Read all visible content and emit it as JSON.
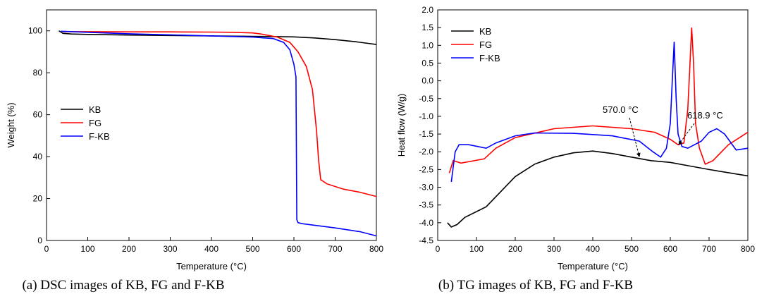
{
  "chart_data": [
    {
      "type": "line",
      "caption": "(a) DSC images of KB, FG and F-KB",
      "xlabel": "Temperature (°C)",
      "ylabel": "Weight (%)",
      "xlim": [
        0,
        800
      ],
      "xticks": [
        0,
        100,
        200,
        300,
        400,
        500,
        600,
        700,
        800
      ],
      "ylim": [
        0,
        110
      ],
      "yticks": [
        0,
        20,
        40,
        60,
        80,
        100
      ],
      "legend": "center-left",
      "series": [
        {
          "name": "KB",
          "color": "#000000",
          "x": [
            30,
            40,
            60,
            100,
            200,
            300,
            400,
            500,
            600,
            650,
            700,
            750,
            800
          ],
          "values": [
            100,
            98.8,
            98.5,
            98.3,
            98,
            97.8,
            97.6,
            97.4,
            97.1,
            96.6,
            95.8,
            94.8,
            93.5
          ]
        },
        {
          "name": "FG",
          "color": "#ff0000",
          "x": [
            40,
            100,
            200,
            300,
            400,
            450,
            500,
            520,
            560,
            590,
            610,
            630,
            645,
            655,
            660,
            665,
            680,
            720,
            760,
            800
          ],
          "values": [
            99.6,
            99.6,
            99.5,
            99.5,
            99.4,
            99.3,
            99,
            98.5,
            97,
            94.5,
            90,
            83,
            72,
            52,
            38,
            29,
            27,
            24.5,
            23,
            21
          ]
        },
        {
          "name": "F-KB",
          "color": "#0000ff",
          "x": [
            35,
            100,
            200,
            300,
            400,
            500,
            550,
            575,
            590,
            600,
            605,
            607,
            610,
            620,
            700,
            760,
            800
          ],
          "values": [
            99.8,
            99.3,
            98.6,
            98.1,
            97.6,
            97,
            96.3,
            94.5,
            91,
            84,
            78,
            10,
            8.5,
            8,
            6,
            4.2,
            2.2
          ]
        }
      ]
    },
    {
      "type": "line",
      "caption": "(b) TG images of KB, FG and F-KB",
      "xlabel": "Temperature (°C)",
      "ylabel": "Heat flow (W/g)",
      "xlim": [
        0,
        800
      ],
      "xticks": [
        0,
        100,
        200,
        300,
        400,
        500,
        600,
        700,
        800
      ],
      "ylim": [
        -4.5,
        2.0
      ],
      "yticks": [
        {
          "value": -4.5,
          "label": "-4.5"
        },
        {
          "value": -4,
          "label": "-4.0"
        },
        {
          "value": -3.5,
          "label": "-3.5"
        },
        {
          "value": -3,
          "label": "-3.0"
        },
        {
          "value": -2.5,
          "label": "-2.5"
        },
        {
          "value": -2,
          "label": "-2.0"
        },
        {
          "value": -1.5,
          "label": "-1.5"
        },
        {
          "value": -1,
          "label": "-1.0"
        },
        {
          "value": -0.5,
          "label": "-0.5"
        },
        {
          "value": 0,
          "label": "0.0"
        },
        0.5,
        {
          "value": 1,
          "label": "1.0"
        },
        1.5,
        {
          "value": 2,
          "label": "2.0"
        }
      ],
      "legend": "upper-left",
      "annotations": [
        "570.0 °C",
        "618.9 °C"
      ],
      "series": [
        {
          "name": "KB",
          "color": "#000000",
          "x": [
            25,
            35,
            50,
            70,
            125,
            200,
            250,
            300,
            350,
            400,
            450,
            500,
            550,
            600,
            650,
            700,
            800
          ],
          "values": [
            -4.0,
            -4.12,
            -4.05,
            -3.85,
            -3.55,
            -2.7,
            -2.35,
            -2.15,
            -2.03,
            -1.98,
            -2.05,
            -2.15,
            -2.25,
            -2.3,
            -2.4,
            -2.5,
            -2.68
          ]
        },
        {
          "name": "FG",
          "color": "#ff0000",
          "x": [
            30,
            40,
            60,
            120,
            150,
            200,
            300,
            400,
            500,
            560,
            600,
            620,
            635,
            645,
            650,
            655,
            660,
            665,
            675,
            690,
            710,
            750,
            800
          ],
          "values": [
            -2.6,
            -2.25,
            -2.32,
            -2.2,
            -1.9,
            -1.6,
            -1.35,
            -1.27,
            -1.35,
            -1.45,
            -1.65,
            -1.8,
            -1.75,
            -0.8,
            0.3,
            1.5,
            0.5,
            -1.2,
            -1.9,
            -2.35,
            -2.25,
            -1.8,
            -1.45
          ]
        },
        {
          "name": "F-KB",
          "color": "#0000ff",
          "x": [
            35,
            45,
            55,
            80,
            125,
            150,
            200,
            250,
            350,
            450,
            520,
            555,
            575,
            590,
            600,
            605,
            610,
            615,
            620,
            630,
            645,
            680,
            700,
            720,
            740,
            770,
            800
          ],
          "values": [
            -2.85,
            -2.0,
            -1.8,
            -1.8,
            -1.9,
            -1.75,
            -1.55,
            -1.47,
            -1.48,
            -1.55,
            -1.7,
            -2.0,
            -2.15,
            -1.9,
            -1.2,
            0.0,
            1.1,
            -0.5,
            -1.5,
            -1.85,
            -1.9,
            -1.7,
            -1.45,
            -1.35,
            -1.5,
            -1.95,
            -1.9
          ]
        }
      ]
    }
  ]
}
